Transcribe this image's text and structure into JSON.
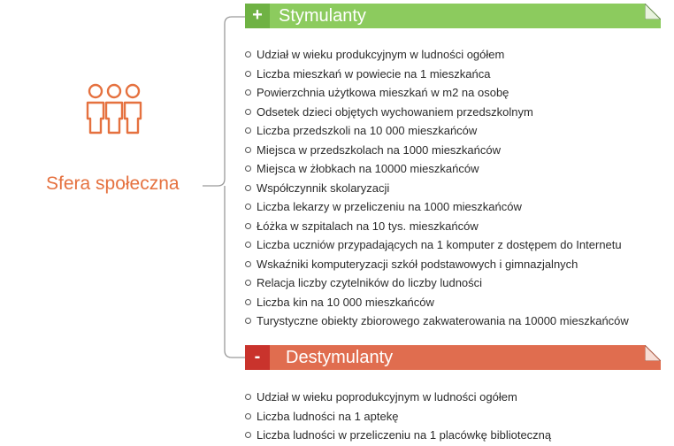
{
  "sphere": {
    "title": "Sfera społeczna",
    "icon": "people-group-icon",
    "accent": "#e5713f"
  },
  "stimulants": {
    "sign": "+",
    "title": "Stymulanty",
    "color": "#8ccb5e",
    "items": [
      "Udział w wieku produkcyjnym w ludności ogółem",
      "Liczba mieszkań w powiecie na 1 mieszkańca",
      "Powierzchnia użytkowa mieszkań w m2 na osobę",
      "Odsetek dzieci objętych wychowaniem przedszkolnym",
      "Liczba przedszkoli na 10 000 mieszkańców",
      "Miejsca w przedszkolach na 1000 mieszkańców",
      "Miejsca w żłobkach na 10000 mieszkańców",
      "Współczynnik skolaryzacji",
      "Liczba lekarzy w przeliczeniu na 1000 mieszkańców",
      "Łóżka w szpitalach na 10 tys. mieszkańców",
      "Liczba uczniów przypadających na 1 komputer z dostępem do Internetu",
      "Wskaźniki komputeryzacji szkół podstawowych i gimnazjalnych",
      "Relacja liczby czytelników do liczby ludności",
      "Liczba kin na 10 000 mieszkańców",
      "Turystyczne obiekty zbiorowego zakwaterowania na 10000 mieszkańców"
    ]
  },
  "destimulants": {
    "sign": "-",
    "title": "Destymulanty",
    "color": "#e06d4f",
    "items": [
      "Udział w wieku poprodukcyjnym w ludności ogółem",
      "Liczba ludności na 1 aptekę",
      "Liczba ludności w przeliczeniu na 1 placówkę biblioteczną"
    ]
  }
}
